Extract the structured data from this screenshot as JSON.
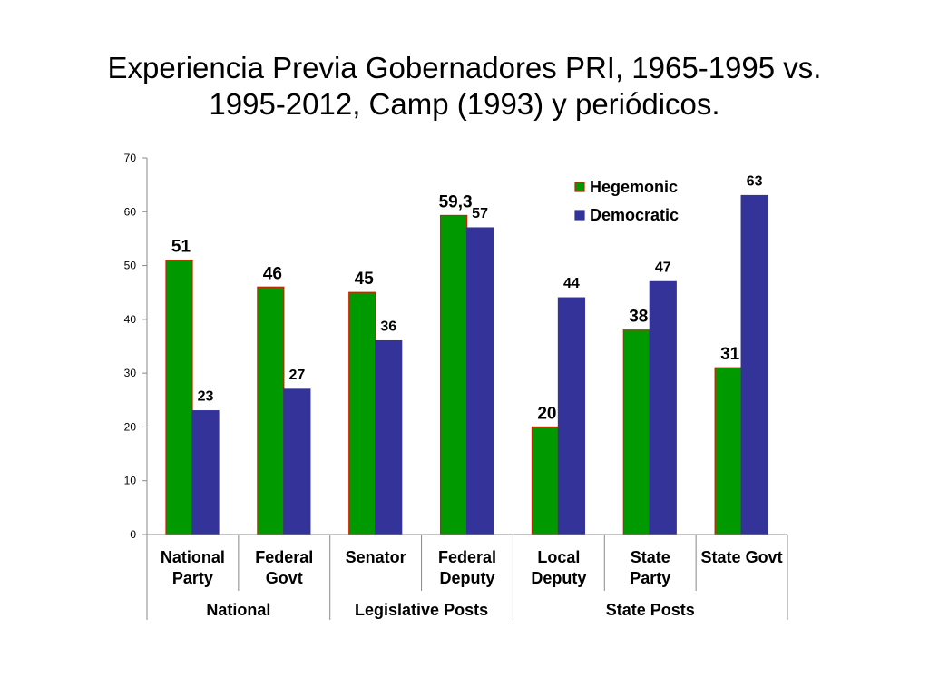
{
  "slide": {
    "title_line1": "Experiencia Previa Gobernadores PRI, 1965-1995 vs.",
    "title_line2": "1995-2012, Camp (1993) y periódicos."
  },
  "chart_data": {
    "type": "bar",
    "title": "",
    "categories": [
      [
        "National",
        "Party"
      ],
      [
        "Federal",
        "Govt"
      ],
      [
        "Senator"
      ],
      [
        "Federal",
        "Deputy"
      ],
      [
        "Local",
        "Deputy"
      ],
      [
        "State",
        "Party"
      ],
      [
        "State Govt"
      ]
    ],
    "groups": [
      {
        "label": "National",
        "categories": [
          0,
          1
        ]
      },
      {
        "label": "Legislative Posts",
        "categories": [
          2,
          3
        ]
      },
      {
        "label": "State Posts",
        "categories": [
          4,
          5,
          6
        ]
      }
    ],
    "series": [
      {
        "name": "Hegemonic",
        "color": "#009900",
        "border": "#cc2200",
        "values": [
          51,
          46,
          45,
          59.3,
          20,
          38,
          31
        ],
        "labels": [
          "51",
          "46",
          "45",
          "59,3",
          "20",
          "38",
          "31"
        ]
      },
      {
        "name": "Democratic",
        "color": "#333399",
        "border": "#333399",
        "values": [
          23,
          27,
          36,
          57,
          44,
          47,
          63
        ],
        "labels": [
          "23",
          "27",
          "36",
          "57",
          "44",
          "47",
          "63"
        ]
      }
    ],
    "ylim": [
      0,
      70
    ],
    "yticks": [
      0,
      10,
      20,
      30,
      40,
      50,
      60,
      70
    ],
    "xlabel": "",
    "ylabel": "",
    "legend": "top-right",
    "grid": false
  }
}
